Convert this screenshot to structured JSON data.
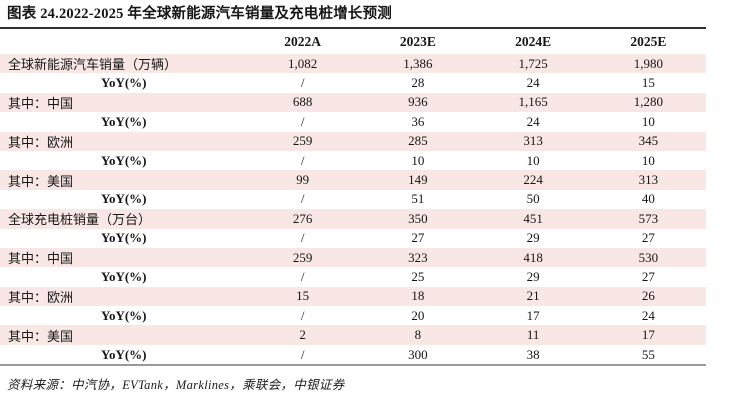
{
  "title": "图表 24.2022-2025 年全球新能源汽车销量及充电桩增长预测",
  "footer": "资料来源：中汽协，EVTank，Marklines，乘联会，中银证券",
  "colors": {
    "row_shade": "#f8e7e5",
    "title_rule": "#2e2e2e",
    "footer_rule": "#9a9a9a",
    "text": "#161616"
  },
  "chart_data": {
    "type": "table",
    "title": "图表 24.2022-2025 年全球新能源汽车销量及充电桩增长预测",
    "columns": [
      "2022A",
      "2023E",
      "2024E",
      "2025E"
    ],
    "rows": [
      {
        "label": "全球新能源汽车销量（万辆）",
        "indent": false,
        "shaded": true,
        "values": [
          "1,082",
          "1,386",
          "1,725",
          "1,980"
        ]
      },
      {
        "label": "YoY(%)",
        "indent": true,
        "shaded": false,
        "values": [
          "/",
          "28",
          "24",
          "15"
        ]
      },
      {
        "label": "其中：中国",
        "indent": false,
        "shaded": true,
        "values": [
          "688",
          "936",
          "1,165",
          "1,280"
        ]
      },
      {
        "label": "YoY(%)",
        "indent": true,
        "shaded": false,
        "values": [
          "/",
          "36",
          "24",
          "10"
        ]
      },
      {
        "label": "其中：欧洲",
        "indent": false,
        "shaded": true,
        "values": [
          "259",
          "285",
          "313",
          "345"
        ]
      },
      {
        "label": "YoY(%)",
        "indent": true,
        "shaded": false,
        "values": [
          "/",
          "10",
          "10",
          "10"
        ]
      },
      {
        "label": "其中：美国",
        "indent": false,
        "shaded": true,
        "values": [
          "99",
          "149",
          "224",
          "313"
        ]
      },
      {
        "label": "YoY(%)",
        "indent": true,
        "shaded": false,
        "values": [
          "/",
          "51",
          "50",
          "40"
        ]
      },
      {
        "label": "全球充电桩销量（万台）",
        "indent": false,
        "shaded": true,
        "values": [
          "276",
          "350",
          "451",
          "573"
        ]
      },
      {
        "label": "YoY(%)",
        "indent": true,
        "shaded": false,
        "values": [
          "/",
          "27",
          "29",
          "27"
        ]
      },
      {
        "label": "其中：中国",
        "indent": false,
        "shaded": true,
        "values": [
          "259",
          "323",
          "418",
          "530"
        ]
      },
      {
        "label": "YoY(%)",
        "indent": true,
        "shaded": false,
        "values": [
          "/",
          "25",
          "29",
          "27"
        ]
      },
      {
        "label": "其中：欧洲",
        "indent": false,
        "shaded": true,
        "values": [
          "15",
          "18",
          "21",
          "26"
        ]
      },
      {
        "label": "YoY(%)",
        "indent": true,
        "shaded": false,
        "values": [
          "/",
          "20",
          "17",
          "24"
        ]
      },
      {
        "label": "其中：美国",
        "indent": false,
        "shaded": true,
        "values": [
          "2",
          "8",
          "11",
          "17"
        ]
      },
      {
        "label": "YoY(%)",
        "indent": true,
        "shaded": false,
        "values": [
          "/",
          "300",
          "38",
          "55"
        ]
      }
    ]
  }
}
